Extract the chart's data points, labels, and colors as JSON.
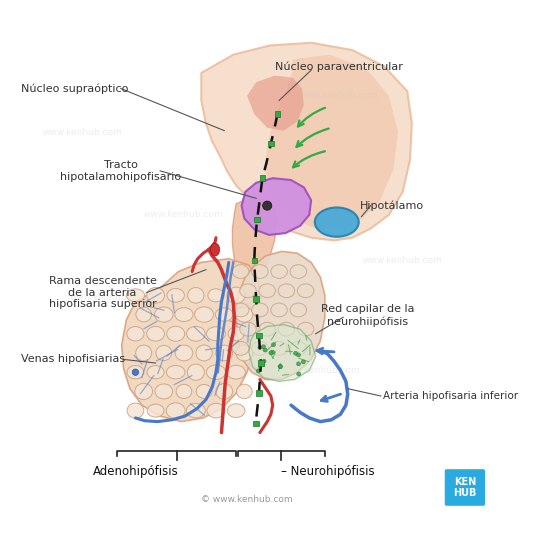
{
  "background_color": "#ffffff",
  "labels": {
    "nucleo_supraoptico": "Núcleo supraóptico",
    "nucleo_paraventricular": "Núcleo paraventricular",
    "tracto": "Tracto\nhipotalamohipofisario",
    "hipotalamo": "Hipotálamo",
    "rama_descendente": "Rama descendente\nde la arteria\nhipofisaria superior",
    "venas": "Venas hipofisiarias",
    "red_capilar": "Red capilar de la\nneurohiipófisis",
    "arteria_inferior": "Arteria hipofisaria inferior",
    "adenohipofisis": "Adenohipófisis",
    "neurohipofisis": "Neurohipófisis"
  },
  "colors": {
    "skin_light": "#f5ddc8",
    "skin_med": "#eebd9e",
    "skin_dark": "#dda07a",
    "skin_red": "#c07060",
    "purple_light": "#d090e0",
    "purple_dark": "#a050c0",
    "blue_gland": "#4a9fd4",
    "blue_vessel": "#4878c8",
    "blue_light": "#88bbdd",
    "red_vessel": "#cc3333",
    "green_dots": "#33aa44",
    "black": "#111111",
    "gray_line": "#555555",
    "kenhub_blue": "#29abe2",
    "white": "#ffffff",
    "adeno_fill": "#f0d5bc",
    "neuro_fill": "#e8d8c8",
    "cell_fill": "#f5e5d5",
    "cell_edge": "#c8a080"
  },
  "watermark": "www.kenhub.com"
}
